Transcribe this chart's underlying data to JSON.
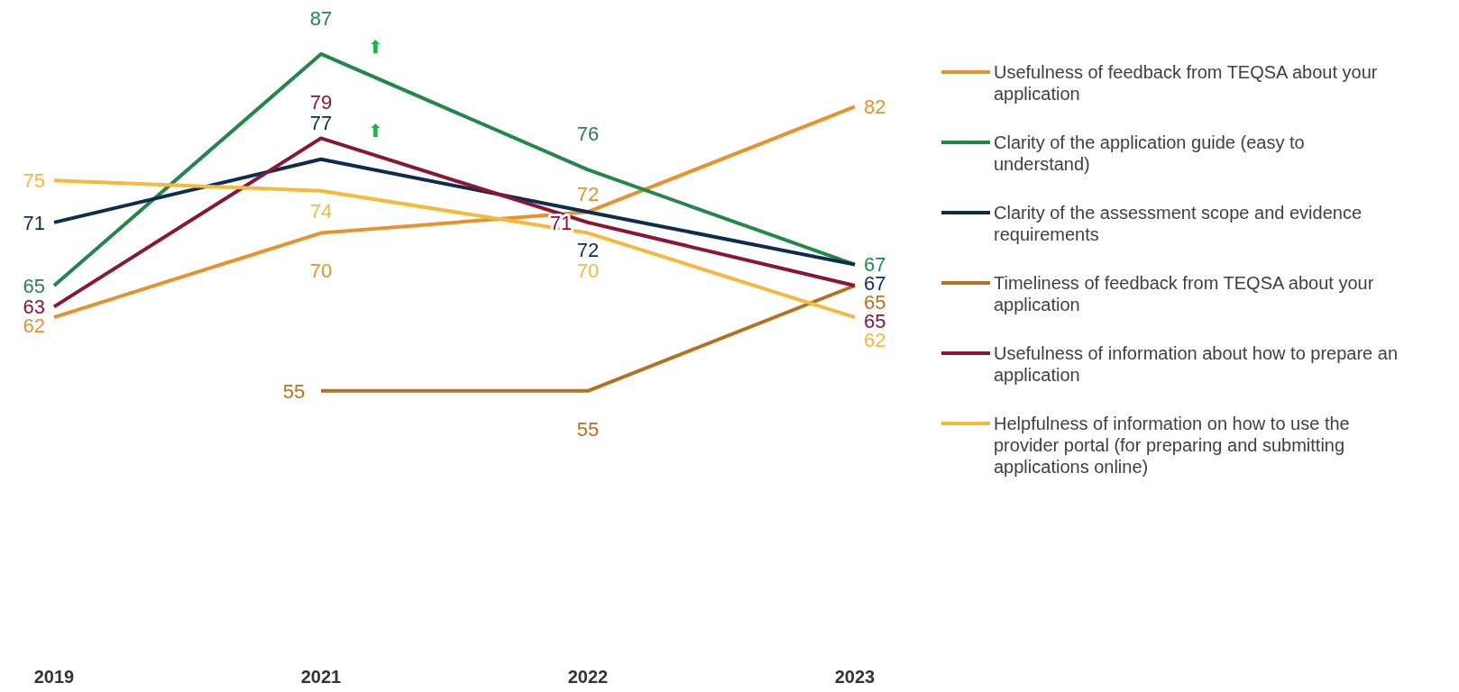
{
  "chart_data": {
    "type": "line",
    "categories": [
      "2019",
      "2021",
      "2022",
      "2023"
    ],
    "data_labels": true,
    "legend": "right",
    "marker": "none",
    "line_style": "solid",
    "series": [
      {
        "name": "Usefulness of feedback from TEQSA about your application",
        "color": "#e8922e",
        "values": [
          62,
          70,
          72,
          82
        ]
      },
      {
        "name": "Clarity of the application guide (easy to understand)",
        "color": "#23874b",
        "values": [
          65,
          87,
          76,
          67
        ]
      },
      {
        "name": "Clarity of the assessment scope and evidence requirements",
        "color": "#0c2d4e",
        "values": [
          71,
          77,
          72,
          67
        ]
      },
      {
        "name": "Timeliness of feedback from TEQSA about your application",
        "color": "#b5711f",
        "values": [
          null,
          55,
          55,
          65
        ]
      },
      {
        "name": "Usefulness of information about how to prepare an application",
        "color": "#8a1538",
        "values": [
          63,
          79,
          71,
          65
        ]
      },
      {
        "name": "Helpfulness of information on how to use the provider portal (for preparing and submitting applications online)",
        "color": "#f5b93d",
        "values": [
          75,
          74,
          70,
          62
        ]
      }
    ],
    "annotations": [
      {
        "text": "⬆",
        "x": "2021",
        "y": 87
      },
      {
        "text": "⬆",
        "x": "2021",
        "y": 79
      }
    ]
  }
}
